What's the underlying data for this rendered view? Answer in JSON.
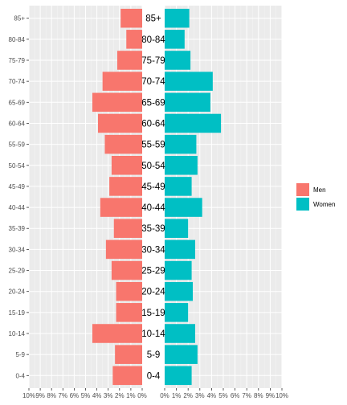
{
  "chart_data": {
    "type": "bar",
    "orientation": "horizontal",
    "layout": "population-pyramid",
    "categories": [
      "0-4",
      "5-9",
      "10-14",
      "15-19",
      "20-24",
      "25-29",
      "30-34",
      "35-39",
      "40-44",
      "45-49",
      "50-54",
      "55-59",
      "60-64",
      "65-69",
      "70-74",
      "75-79",
      "80-84",
      "85+"
    ],
    "series": [
      {
        "name": "Men",
        "color": "#F8766D",
        "values": [
          2.6,
          2.4,
          4.4,
          2.3,
          2.3,
          2.7,
          3.2,
          2.5,
          3.7,
          2.9,
          2.7,
          3.3,
          3.9,
          4.4,
          3.5,
          2.2,
          1.4,
          1.9
        ]
      },
      {
        "name": "Women",
        "color": "#00BFC4",
        "values": [
          2.3,
          2.8,
          2.6,
          2.0,
          2.4,
          2.3,
          2.6,
          2.0,
          3.2,
          2.3,
          2.8,
          2.7,
          4.8,
          3.9,
          4.1,
          2.2,
          1.7,
          2.1
        ]
      }
    ],
    "xlim": [
      0,
      10
    ],
    "tick_labels": [
      "0%",
      "1%",
      "2%",
      "3%",
      "4%",
      "5%",
      "6%",
      "7%",
      "8%",
      "9%",
      "10%"
    ],
    "grid": true,
    "panel_background": "#EBEBEB",
    "title": "",
    "xlabel": "",
    "ylabel": "",
    "legend": {
      "position": "right",
      "entries": [
        "Men",
        "Women"
      ]
    }
  }
}
